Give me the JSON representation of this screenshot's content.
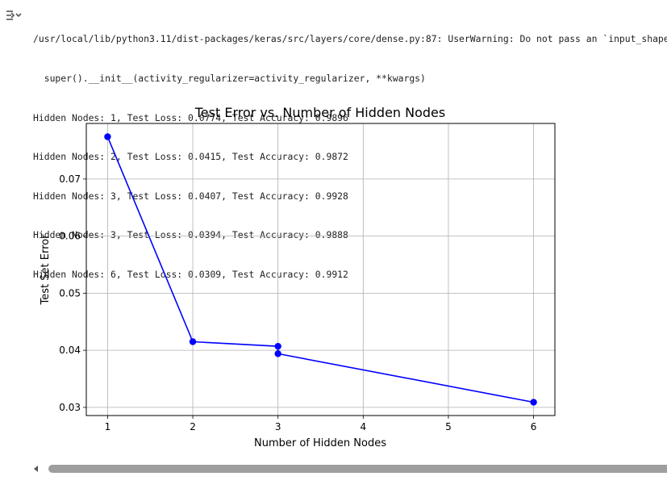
{
  "output": {
    "warning_line1": "/usr/local/lib/python3.11/dist-packages/keras/src/layers/core/dense.py:87: UserWarning: Do not pass an `input_shape`/`input_dim` argument to a layer.",
    "warning_line2": "  super().__init__(activity_regularizer=activity_regularizer, **kwargs)",
    "results": [
      "Hidden Nodes: 1, Test Loss: 0.0774, Test Accuracy: 0.9896",
      "Hidden Nodes: 2, Test Loss: 0.0415, Test Accuracy: 0.9872",
      "Hidden Nodes: 3, Test Loss: 0.0407, Test Accuracy: 0.9928",
      "Hidden Nodes: 3, Test Loss: 0.0394, Test Accuracy: 0.9888",
      "Hidden Nodes: 6, Test Loss: 0.0309, Test Accuracy: 0.9912"
    ]
  },
  "icons": {
    "gutter": "output-toggle-icon",
    "scroll_left": "scroll-left-arrow-icon"
  },
  "chart_data": {
    "type": "line",
    "title": "Test Error vs. Number of Hidden Nodes",
    "xlabel": "Number of Hidden Nodes",
    "ylabel": "Test Set Error",
    "x": [
      1,
      2,
      3,
      3,
      6
    ],
    "y": [
      0.0774,
      0.0415,
      0.0407,
      0.0394,
      0.0309
    ],
    "x_ticks": [
      1,
      2,
      3,
      4,
      5,
      6
    ],
    "y_ticks": [
      0.03,
      0.04,
      0.05,
      0.06,
      0.07
    ],
    "x_tick_labels": [
      "1",
      "2",
      "3",
      "4",
      "5",
      "6"
    ],
    "y_tick_labels": [
      "0.03",
      "0.04",
      "0.05",
      "0.06",
      "0.07"
    ],
    "xlim": [
      0.75,
      6.25
    ],
    "ylim": [
      0.02857,
      0.07973
    ],
    "grid": true,
    "marker": "circle",
    "color": "#0000ff"
  }
}
